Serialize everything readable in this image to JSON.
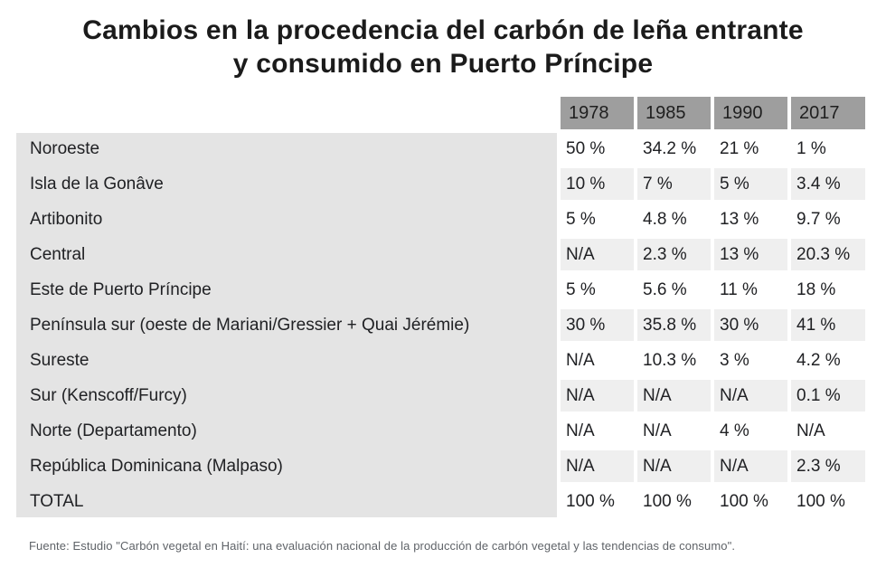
{
  "title": {
    "line1": "Cambios en la procedencia del carbón de leña entrante",
    "line2": "y consumido en Puerto Príncipe"
  },
  "footer": {
    "source": "Fuente: Estudio \"Carbón vegetal en Haití: una evaluación nacional de la producción de carbón vegetal y las tendencias de consumo\"."
  },
  "colors": {
    "header_bg": "#9e9e9e",
    "label_col_bg": "#e4e4e4",
    "stripe_bg": "#efefef",
    "text": "#202124",
    "footer_text": "#5f6368"
  },
  "chart_data": {
    "type": "table",
    "title": "Cambios en la procedencia del carbón de leña entrante y consumido en Puerto Príncipe",
    "columns": [
      "1978",
      "1985",
      "1990",
      "2017"
    ],
    "rows": [
      {
        "label": "Noroeste",
        "values": [
          "50 %",
          "34.2 %",
          "21 %",
          "1 %"
        ]
      },
      {
        "label": "Isla de la Gonâve",
        "values": [
          "10 %",
          "7 %",
          "5 %",
          "3.4 %"
        ]
      },
      {
        "label": "Artibonito",
        "values": [
          "5 %",
          "4.8 %",
          "13 %",
          "9.7 %"
        ]
      },
      {
        "label": "Central",
        "values": [
          "N/A",
          "2.3 %",
          "13 %",
          "20.3 %"
        ]
      },
      {
        "label": "Este de Puerto Príncipe",
        "values": [
          "5 %",
          "5.6 %",
          "11 %",
          "18 %"
        ]
      },
      {
        "label": "Península sur (oeste de Mariani/Gressier + Quai Jérémie)",
        "values": [
          "30 %",
          "35.8 %",
          "30 %",
          "41 %"
        ]
      },
      {
        "label": "Sureste",
        "values": [
          "N/A",
          "10.3 %",
          "3 %",
          "4.2 %"
        ]
      },
      {
        "label": "Sur (Kenscoff/Furcy)",
        "values": [
          "N/A",
          "N/A",
          "N/A",
          "0.1 %"
        ]
      },
      {
        "label": "Norte (Departamento)",
        "values": [
          "N/A",
          "N/A",
          "4 %",
          "N/A"
        ]
      },
      {
        "label": "República Dominicana (Malpaso)",
        "values": [
          "N/A",
          "N/A",
          "N/A",
          "2.3 %"
        ]
      },
      {
        "label": "TOTAL",
        "values": [
          "100 %",
          "100 %",
          "100 %",
          "100 %"
        ]
      }
    ]
  }
}
